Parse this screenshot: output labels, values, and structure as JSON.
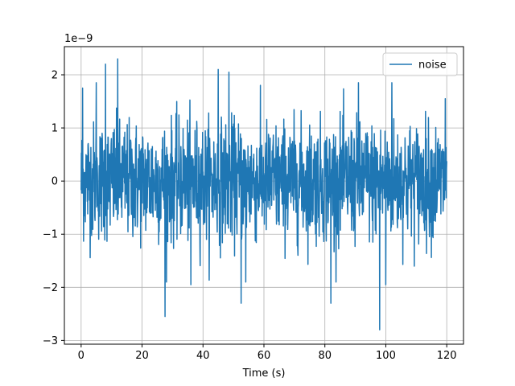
{
  "chart_data": {
    "type": "line",
    "title": "",
    "xlabel": "Time (s)",
    "ylabel": "",
    "offset_text": "1e−9",
    "y_scale_exponent": -9,
    "xlim": [
      -5.5,
      125.5
    ],
    "ylim": [
      -3.07,
      2.53
    ],
    "x_ticks": [
      0,
      20,
      40,
      60,
      80,
      100,
      120
    ],
    "x_tick_labels": [
      "0",
      "20",
      "40",
      "60",
      "80",
      "100",
      "120"
    ],
    "y_ticks": [
      -3,
      -2,
      -1,
      0,
      1,
      2
    ],
    "y_tick_labels": [
      "−3",
      "−2",
      "−1",
      "0",
      "1",
      "2"
    ],
    "grid": true,
    "legend_position": "top-right",
    "series": [
      {
        "name": "noise",
        "color": "#1f77b4",
        "x_range": [
          0,
          120
        ],
        "envelope_max": 2.3,
        "envelope_min": -2.8,
        "notable_points": [
          {
            "x": 0.5,
            "y": 1.75
          },
          {
            "x": 5.0,
            "y": 1.85
          },
          {
            "x": 8.0,
            "y": 2.2
          },
          {
            "x": 12.0,
            "y": 2.3
          },
          {
            "x": 27.5,
            "y": -2.55
          },
          {
            "x": 36.0,
            "y": -1.95
          },
          {
            "x": 45.0,
            "y": 2.1
          },
          {
            "x": 48.5,
            "y": 2.05
          },
          {
            "x": 52.5,
            "y": -2.3
          },
          {
            "x": 54.0,
            "y": -1.9
          },
          {
            "x": 82.0,
            "y": -2.3
          },
          {
            "x": 91.0,
            "y": 1.85
          },
          {
            "x": 98.0,
            "y": -2.8
          },
          {
            "x": 100.0,
            "y": -1.95
          },
          {
            "x": 102.0,
            "y": 1.85
          },
          {
            "x": 119.5,
            "y": 1.55
          }
        ]
      }
    ]
  }
}
